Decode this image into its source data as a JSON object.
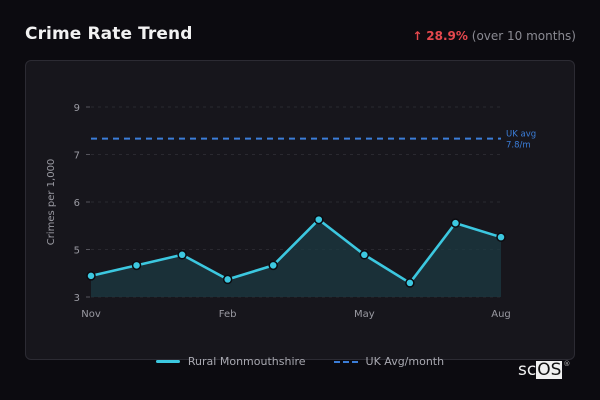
{
  "header": {
    "title": "Crime Rate Trend",
    "change_arrow": "↑",
    "change_value": "28.9%",
    "change_note": "(over 10 months)"
  },
  "colors": {
    "background": "#0c0b10",
    "card": "#17161c",
    "series": "#3cc8e0",
    "average": "#3b7dd8",
    "increase": "#e5484d"
  },
  "logo": {
    "left": "sc",
    "right": "OS",
    "mark": "®"
  },
  "chart_data": {
    "type": "line",
    "title": "Crime Rate Trend",
    "xlabel": "",
    "ylabel": "Crimes per 1,000",
    "x": [
      "Nov",
      "Dec",
      "Jan",
      "Feb",
      "Mar",
      "Apr",
      "May",
      "Jun",
      "Jul",
      "Aug"
    ],
    "x_tick_labels": [
      "Nov",
      "Feb",
      "May",
      "Aug"
    ],
    "y_tick_labels": [
      "3",
      "5",
      "6",
      "7",
      "9"
    ],
    "ylim": [
      3.3,
      8.7
    ],
    "grid": true,
    "series": [
      {
        "name": "Rural Monmouthshire",
        "values": [
          3.9,
          4.2,
          4.5,
          3.8,
          4.2,
          5.5,
          4.5,
          3.7,
          5.4,
          5.0
        ],
        "style": "solid-area-markers"
      },
      {
        "name": "UK Avg/month",
        "values": [
          7.8,
          7.8,
          7.8,
          7.8,
          7.8,
          7.8,
          7.8,
          7.8,
          7.8,
          7.8
        ],
        "style": "dashed"
      }
    ],
    "annotations": [
      {
        "text_line1": "UK avg",
        "text_line2": "7.8/m",
        "position": "right of dashed line"
      }
    ],
    "legend": {
      "position": "bottom",
      "entries": [
        "Rural Monmouthshire",
        "UK Avg/month"
      ]
    }
  }
}
